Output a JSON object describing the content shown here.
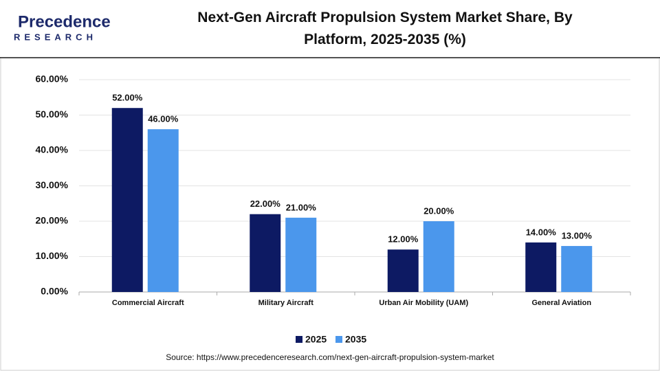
{
  "logo": {
    "name": "Precedence",
    "tagline": "RESEARCH"
  },
  "chart_data": {
    "type": "bar",
    "title": "Next-Gen Aircraft Propulsion System Market Share, By Platform, 2025-2035 (%)",
    "categories": [
      "Commercial Aircraft",
      "Military Aircraft",
      "Urban Air Mobility (UAM)",
      "General Aviation"
    ],
    "series": [
      {
        "name": "2025",
        "color": "#0d1a63",
        "values": [
          52,
          22,
          12,
          14
        ],
        "value_labels": [
          "52.00%",
          "22.00%",
          "12.00%",
          "14.00%"
        ]
      },
      {
        "name": "2035",
        "color": "#4b97ec",
        "values": [
          46,
          21,
          20,
          13
        ],
        "value_labels": [
          "46.00%",
          "21.00%",
          "20.00%",
          "13.00%"
        ]
      }
    ],
    "ylim": [
      0,
      60
    ],
    "yticks": [
      {
        "value": 0,
        "label": "0.00%"
      },
      {
        "value": 10,
        "label": "10.00%"
      },
      {
        "value": 20,
        "label": "20.00%"
      },
      {
        "value": 30,
        "label": "30.00%"
      },
      {
        "value": 40,
        "label": "40.00%"
      },
      {
        "value": 50,
        "label": "50.00%"
      },
      {
        "value": 60,
        "label": "60.00%"
      }
    ],
    "grid": true,
    "legend": "bottom",
    "source": "Source: https://www.precedenceresearch.com/next-gen-aircraft-propulsion-system-market"
  }
}
